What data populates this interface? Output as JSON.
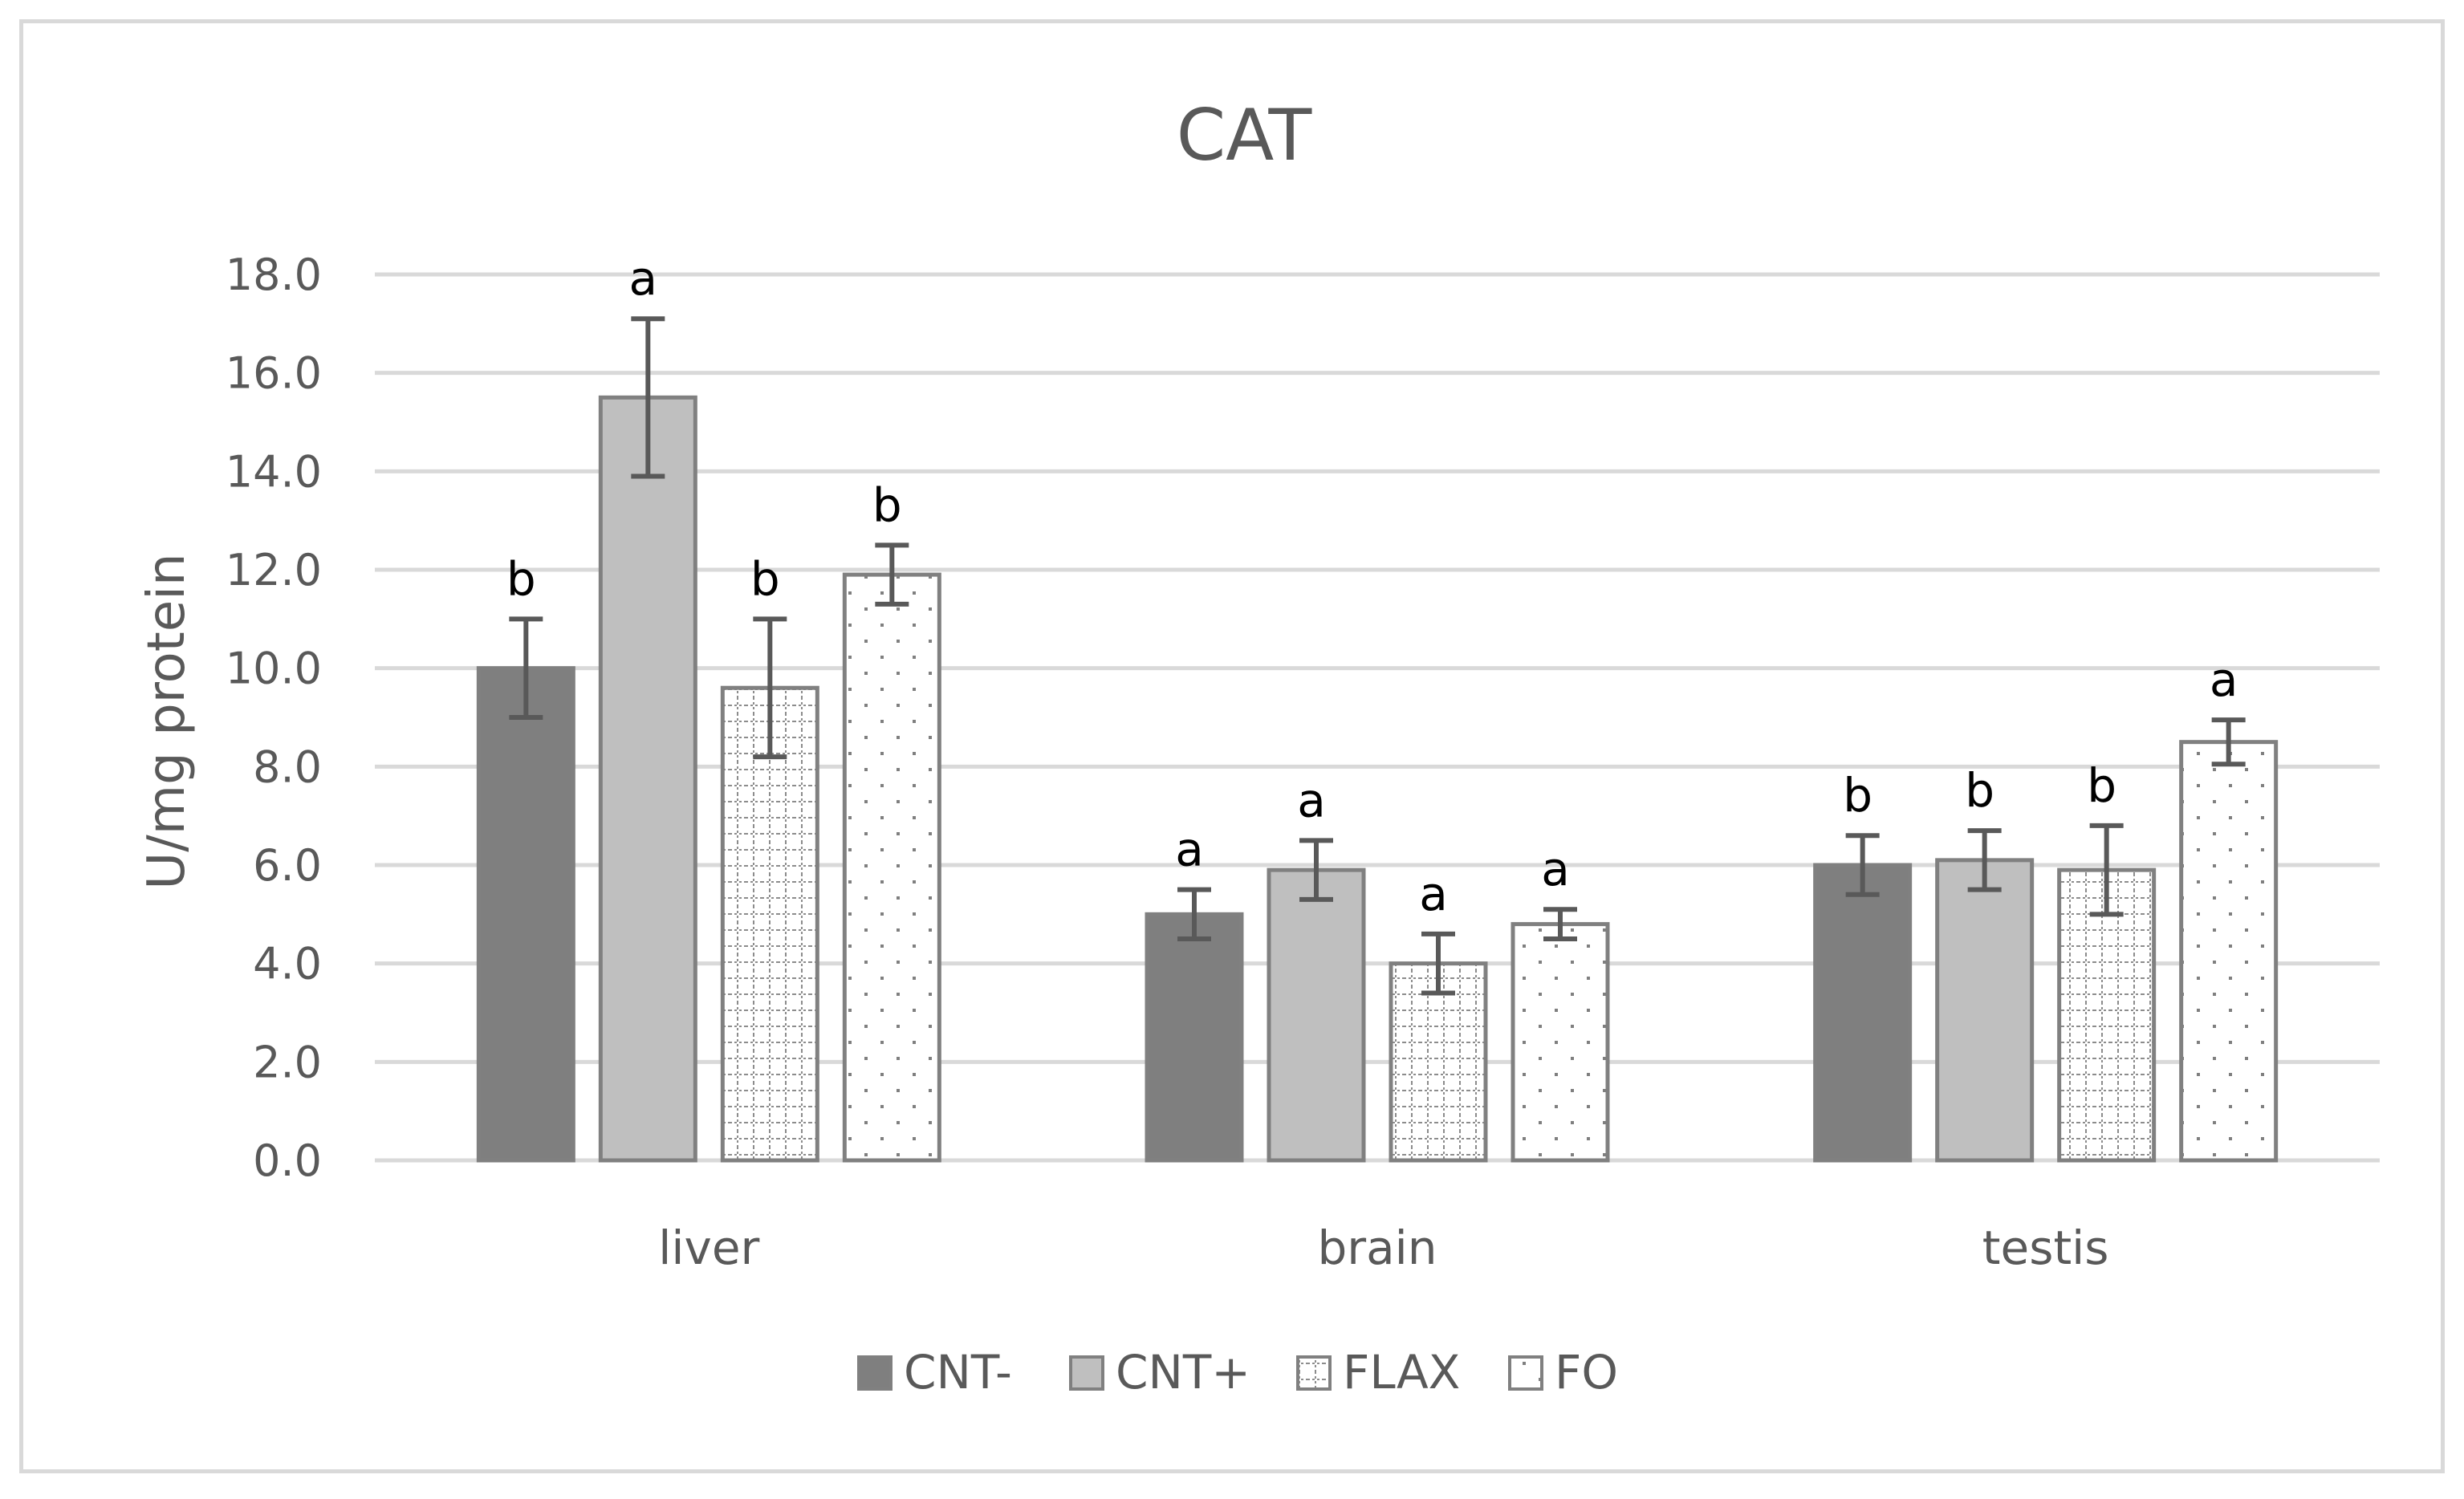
{
  "chart_data": {
    "type": "bar",
    "title": "CAT",
    "ylabel": "U/mg protein",
    "xlabel": "",
    "ylim": [
      0,
      18
    ],
    "yticks": [
      "0.0",
      "2.0",
      "4.0",
      "6.0",
      "8.0",
      "10.0",
      "12.0",
      "14.0",
      "16.0",
      "18.0"
    ],
    "categories": [
      "liver",
      "brain",
      "testis"
    ],
    "grid": true,
    "legend_position": "bottom",
    "series": [
      {
        "name": "CNT-",
        "pattern": "solid",
        "color": "#7f7f7f",
        "values": [
          10.0,
          5.0,
          6.0
        ],
        "errors": [
          1.0,
          0.5,
          0.6
        ],
        "labels": [
          "b",
          "a",
          "b"
        ]
      },
      {
        "name": "CNT+",
        "pattern": "solid",
        "color": "#bfbfbf",
        "values": [
          15.5,
          5.9,
          6.1
        ],
        "errors": [
          1.6,
          0.6,
          0.6
        ],
        "labels": [
          "a",
          "a",
          "b"
        ]
      },
      {
        "name": "FLAX",
        "pattern": "grid",
        "color": "#ffffff",
        "values": [
          9.6,
          4.0,
          5.9
        ],
        "errors": [
          1.4,
          0.6,
          0.9
        ],
        "labels": [
          "b",
          "a",
          "b"
        ]
      },
      {
        "name": "FO",
        "pattern": "dots",
        "color": "#ffffff",
        "values": [
          11.9,
          4.8,
          8.5
        ],
        "errors": [
          0.6,
          0.3,
          0.45
        ],
        "labels": [
          "b",
          "a",
          "a"
        ]
      }
    ],
    "colors": {
      "gridline": "#d9d9d9",
      "bar_border": "#808080",
      "error_bar": "#595959",
      "text": "#595959"
    }
  }
}
